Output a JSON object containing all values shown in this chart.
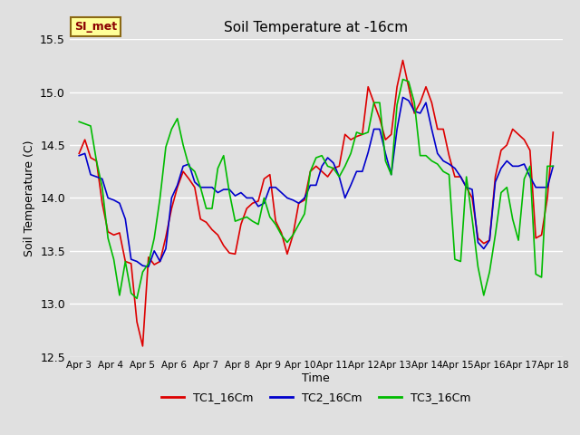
{
  "title": "Soil Temperature at -16cm",
  "xlabel": "Time",
  "ylabel": "Soil Temperature (C)",
  "ylim": [
    12.5,
    15.5
  ],
  "bg_color": "#e0e0e0",
  "plot_bg_color": "#e0e0e0",
  "legend_label": "SI_met",
  "series_colors": [
    "#dd0000",
    "#0000cc",
    "#00bb00"
  ],
  "series_names": [
    "TC1_16Cm",
    "TC2_16Cm",
    "TC3_16Cm"
  ],
  "xtick_labels": [
    "Apr 3",
    "Apr 4",
    "Apr 5",
    "Apr 6",
    "Apr 7",
    "Apr 8",
    "Apr 9",
    "Apr 10",
    "Apr 11",
    "Apr 12",
    "Apr 13",
    "Apr 14",
    "Apr 15",
    "Apr 16",
    "Apr 17",
    "Apr 18"
  ],
  "yticks": [
    12.5,
    13.0,
    13.5,
    14.0,
    14.5,
    15.0,
    15.5
  ],
  "TC1_16Cm": [
    14.42,
    14.55,
    14.38,
    14.35,
    13.95,
    13.68,
    13.65,
    13.67,
    13.4,
    13.38,
    12.83,
    12.6,
    13.44,
    13.37,
    13.4,
    13.63,
    13.9,
    14.1,
    14.25,
    14.18,
    14.1,
    13.8,
    13.77,
    13.7,
    13.65,
    13.55,
    13.48,
    13.47,
    13.75,
    13.9,
    13.95,
    13.97,
    14.18,
    14.22,
    13.78,
    13.67,
    13.47,
    13.65,
    13.95,
    13.98,
    14.25,
    14.3,
    14.25,
    14.2,
    14.28,
    14.3,
    14.6,
    14.55,
    14.58,
    14.6,
    15.05,
    14.9,
    14.75,
    14.55,
    14.6,
    15.05,
    15.3,
    15.05,
    14.8,
    14.9,
    15.05,
    14.9,
    14.65,
    14.65,
    14.4,
    14.2,
    14.2,
    14.1,
    14.0,
    13.62,
    13.57,
    13.6,
    14.2,
    14.45,
    14.5,
    14.65,
    14.6,
    14.55,
    14.45,
    13.62,
    13.65,
    14.0,
    14.62
  ],
  "TC2_16Cm": [
    14.4,
    14.42,
    14.22,
    14.2,
    14.18,
    14.0,
    13.98,
    13.95,
    13.8,
    13.42,
    13.4,
    13.36,
    13.35,
    13.5,
    13.4,
    13.52,
    14.0,
    14.12,
    14.3,
    14.32,
    14.15,
    14.1,
    14.1,
    14.1,
    14.05,
    14.08,
    14.08,
    14.02,
    14.05,
    14.0,
    14.0,
    13.92,
    13.95,
    14.1,
    14.1,
    14.05,
    14.0,
    13.98,
    13.95,
    14.0,
    14.12,
    14.12,
    14.3,
    14.38,
    14.33,
    14.2,
    14.0,
    14.12,
    14.25,
    14.25,
    14.43,
    14.65,
    14.65,
    14.42,
    14.22,
    14.65,
    14.95,
    14.92,
    14.82,
    14.8,
    14.9,
    14.65,
    14.42,
    14.35,
    14.32,
    14.28,
    14.2,
    14.1,
    14.08,
    13.58,
    13.52,
    13.6,
    14.15,
    14.28,
    14.35,
    14.3,
    14.3,
    14.32,
    14.2,
    14.1,
    14.1,
    14.1,
    14.3
  ],
  "TC3_16Cm": [
    14.72,
    14.7,
    14.68,
    14.35,
    14.1,
    13.62,
    13.42,
    13.08,
    13.4,
    13.1,
    13.05,
    13.3,
    13.38,
    13.62,
    14.0,
    14.48,
    14.65,
    14.75,
    14.5,
    14.3,
    14.25,
    14.1,
    13.9,
    13.9,
    14.28,
    14.4,
    14.05,
    13.78,
    13.8,
    13.82,
    13.78,
    13.75,
    14.0,
    13.82,
    13.75,
    13.65,
    13.58,
    13.65,
    13.75,
    13.85,
    14.25,
    14.38,
    14.4,
    14.3,
    14.28,
    14.2,
    14.3,
    14.42,
    14.62,
    14.6,
    14.62,
    14.9,
    14.9,
    14.35,
    14.22,
    14.88,
    15.12,
    15.1,
    14.9,
    14.4,
    14.4,
    14.35,
    14.32,
    14.25,
    14.22,
    13.42,
    13.4,
    14.2,
    13.8,
    13.35,
    13.08,
    13.3,
    13.65,
    14.05,
    14.1,
    13.8,
    13.6,
    14.18,
    14.3,
    13.28,
    13.25,
    14.3,
    14.3
  ]
}
